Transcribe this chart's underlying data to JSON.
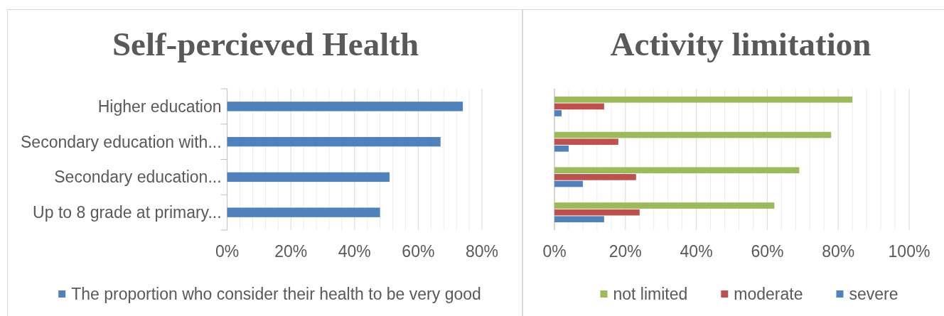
{
  "chart_data": [
    {
      "type": "bar",
      "orientation": "horizontal",
      "title": "Self-percieved Health",
      "categories": [
        "Higher education",
        "Secondary education with...",
        "Secondary education...",
        "Up to 8 grade at primary..."
      ],
      "series": [
        {
          "name": "The proportion who consider their health to be very good",
          "color": "#4f81bd",
          "values": [
            74,
            67,
            51,
            48
          ]
        }
      ],
      "xlim": [
        0,
        80
      ],
      "xticks": [
        {
          "value": 0,
          "label": "0%"
        },
        {
          "value": 4,
          "label": null
        },
        {
          "value": 8,
          "label": null
        },
        {
          "value": 12,
          "label": null
        },
        {
          "value": 16,
          "label": null
        },
        {
          "value": 20,
          "label": "20%"
        },
        {
          "value": 24,
          "label": null
        },
        {
          "value": 28,
          "label": null
        },
        {
          "value": 32,
          "label": null
        },
        {
          "value": 36,
          "label": null
        },
        {
          "value": 40,
          "label": "40%"
        },
        {
          "value": 44,
          "label": null
        },
        {
          "value": 48,
          "label": null
        },
        {
          "value": 52,
          "label": null
        },
        {
          "value": 56,
          "label": null
        },
        {
          "value": 60,
          "label": "60%"
        },
        {
          "value": 64,
          "label": null
        },
        {
          "value": 68,
          "label": null
        },
        {
          "value": 72,
          "label": null
        },
        {
          "value": 76,
          "label": null
        },
        {
          "value": 80,
          "label": "80%"
        }
      ],
      "grid": "x",
      "legend": "bottom"
    },
    {
      "type": "bar",
      "orientation": "horizontal",
      "title": "Activity limitation",
      "categories": [
        null,
        null,
        null,
        null
      ],
      "series": [
        {
          "name": "not limited",
          "color": "#9bbb59",
          "values": [
            84,
            78,
            69,
            62
          ]
        },
        {
          "name": "moderate",
          "color": "#c0504d",
          "values": [
            14,
            18,
            23,
            24
          ]
        },
        {
          "name": "severe",
          "color": "#4f81bd",
          "values": [
            2,
            4,
            8,
            14
          ]
        }
      ],
      "xlim": [
        0,
        100
      ],
      "xticks": [
        {
          "value": 0,
          "label": "0%"
        },
        {
          "value": 4,
          "label": null
        },
        {
          "value": 8,
          "label": null
        },
        {
          "value": 12,
          "label": null
        },
        {
          "value": 16,
          "label": null
        },
        {
          "value": 20,
          "label": "20%"
        },
        {
          "value": 24,
          "label": null
        },
        {
          "value": 28,
          "label": null
        },
        {
          "value": 32,
          "label": null
        },
        {
          "value": 36,
          "label": null
        },
        {
          "value": 40,
          "label": "40%"
        },
        {
          "value": 44,
          "label": null
        },
        {
          "value": 48,
          "label": null
        },
        {
          "value": 52,
          "label": null
        },
        {
          "value": 56,
          "label": null
        },
        {
          "value": 60,
          "label": "60%"
        },
        {
          "value": 64,
          "label": null
        },
        {
          "value": 68,
          "label": null
        },
        {
          "value": 72,
          "label": null
        },
        {
          "value": 76,
          "label": null
        },
        {
          "value": 80,
          "label": "80%"
        },
        {
          "value": 84,
          "label": null
        },
        {
          "value": 88,
          "label": null
        },
        {
          "value": 92,
          "label": null
        },
        {
          "value": 96,
          "label": null
        },
        {
          "value": 100,
          "label": "100%"
        }
      ],
      "grid": "x",
      "legend": "bottom"
    }
  ]
}
